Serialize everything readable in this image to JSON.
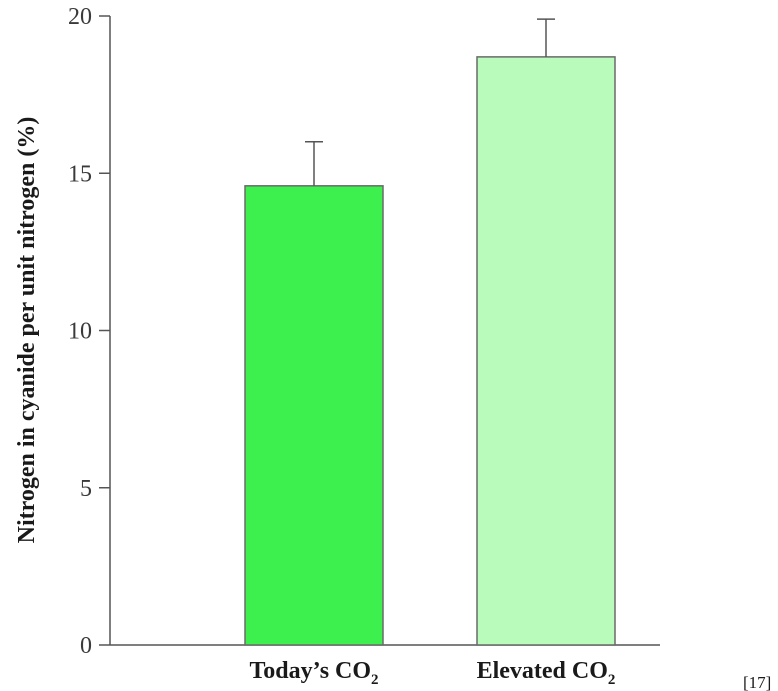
{
  "chart_data": {
    "type": "bar",
    "categories": [
      {
        "main": "Today’s CO",
        "sub": "2"
      },
      {
        "main": "Elevated CO",
        "sub": "2"
      }
    ],
    "values": [
      14.6,
      18.7
    ],
    "errors": [
      1.4,
      1.2
    ],
    "colors": [
      "#3ef04e",
      "#b9fbbb"
    ],
    "ylabel": "Nitrogen in cyanide per unit nitrogen (%)",
    "ylim": [
      0,
      20
    ],
    "yticks": [
      0,
      5,
      10,
      15,
      20
    ],
    "grid": false
  },
  "reference_note": "[17]"
}
